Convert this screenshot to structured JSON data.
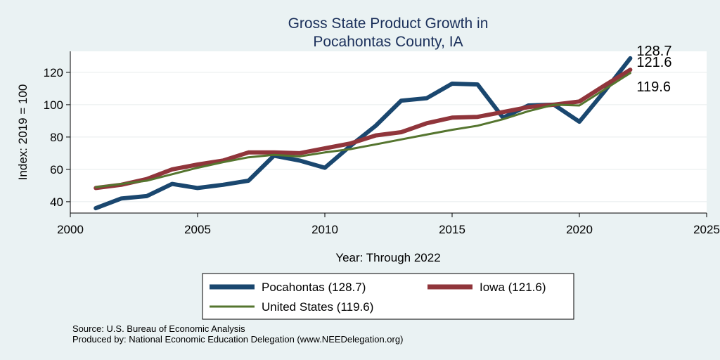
{
  "chart_data": {
    "type": "line",
    "title": [
      "Gross State Product Growth in",
      "Pocahontas County, IA"
    ],
    "xlabel": "Year: Through 2022",
    "ylabel": "Index: 2019 = 100",
    "xlim": [
      2000,
      2025
    ],
    "ylim": [
      33,
      133
    ],
    "xticks": [
      2000,
      2005,
      2010,
      2015,
      2020,
      2025
    ],
    "yticks": [
      40,
      60,
      80,
      100,
      120
    ],
    "x": [
      2001,
      2002,
      2003,
      2004,
      2005,
      2006,
      2007,
      2008,
      2009,
      2010,
      2011,
      2012,
      2013,
      2014,
      2015,
      2016,
      2017,
      2018,
      2019,
      2020,
      2021,
      2022
    ],
    "series": [
      {
        "name": "Pocahontas",
        "color": "#1a476f",
        "values": [
          36,
          42,
          43.5,
          51,
          48.5,
          50.5,
          53,
          68.5,
          65.5,
          61,
          74.5,
          87,
          102.5,
          104,
          113,
          112.5,
          92,
          99.5,
          100,
          89.5,
          108.5,
          128.7
        ],
        "end_label": "128.7"
      },
      {
        "name": "Iowa",
        "color": "#90353b",
        "values": [
          48.5,
          50.5,
          54,
          60,
          63,
          65.5,
          70.5,
          70.5,
          70,
          73,
          76,
          81,
          83,
          88.5,
          92,
          92.5,
          95.5,
          98.5,
          100,
          102,
          112,
          121.6
        ],
        "end_label": "121.6"
      },
      {
        "name": "United States",
        "color": "#55752f",
        "values": [
          49,
          51,
          53,
          57,
          61,
          64.5,
          67.5,
          69,
          68,
          70.5,
          72.5,
          75.5,
          78.5,
          81.5,
          84.5,
          87,
          91,
          96,
          100,
          99.5,
          109.5,
          119.6
        ],
        "end_label": "119.6"
      }
    ],
    "legend": [
      {
        "label": "Pocahontas  (128.7)",
        "color": "#1a476f",
        "weight": "thick"
      },
      {
        "label": "Iowa (121.6)",
        "color": "#90353b",
        "weight": "thick"
      },
      {
        "label": "United States (119.6)",
        "color": "#55752f",
        "weight": "thin"
      }
    ]
  },
  "notes": [
    "Source: U.S. Bureau of Economic Analysis",
    "Produced by: National Economic Education Delegation (www.NEEDelegation.org)"
  ]
}
